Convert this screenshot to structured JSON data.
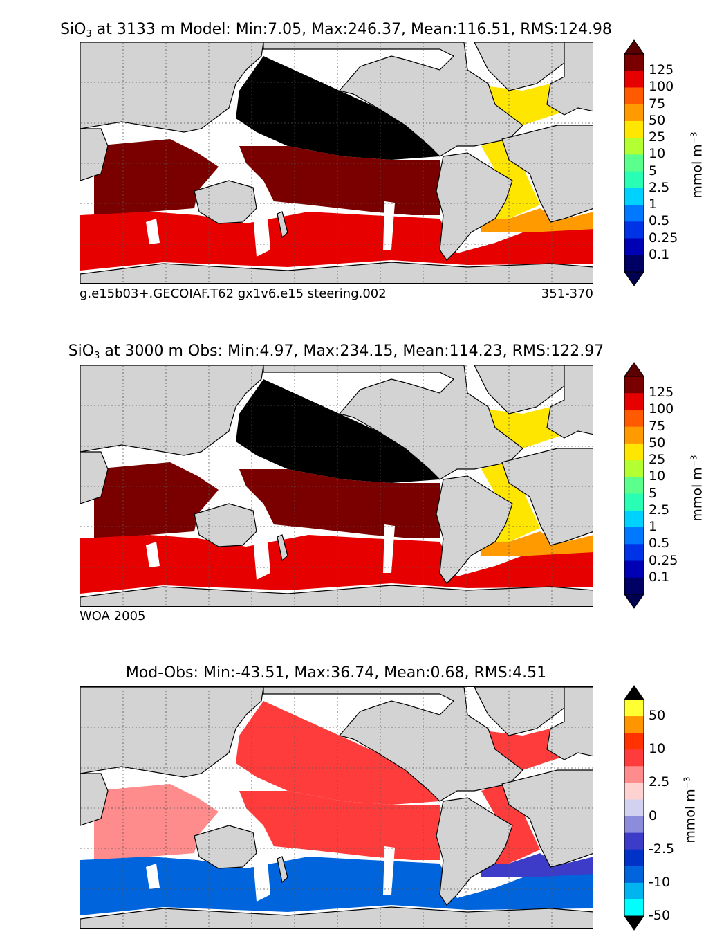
{
  "panels": [
    {
      "id": "model",
      "title_species": "SiO",
      "title_sub": "3",
      "title_rest": " at 3133 m Model: Min:7.05, Max:246.37, Mean:116.51, RMS:124.98",
      "footer_left": "g.e15b03+.GECOIAF.T62 gx1v6.e15 steering.002",
      "footer_right": "351-370",
      "colorbar": {
        "labels": [
          "125",
          "100",
          "75",
          "50",
          "25",
          "10",
          "5",
          "2.5",
          "1",
          "0.5",
          "0.25",
          "0.1"
        ],
        "colors": [
          "#7a0000",
          "#e60000",
          "#ff5a00",
          "#ff9a00",
          "#ffe600",
          "#b4ff32",
          "#5aff8c",
          "#28ffb4",
          "#00d2ff",
          "#0078ff",
          "#0032e6",
          "#0000b4",
          "#000064"
        ],
        "over_color": "#5a0000",
        "under_color": "#000050",
        "unit_base": "mmol m",
        "unit_exp": "−3"
      },
      "regions": {
        "pacific_north": "#000000",
        "pacific_south": "#7a0000",
        "indian": "#7a0000",
        "southern": "#e60000",
        "atlantic": "#ffe600",
        "atlantic_south": "#ff9a00",
        "arctic": "#b4ff32"
      }
    },
    {
      "id": "obs",
      "title_species": "SiO",
      "title_sub": "3",
      "title_rest": " at 3000 m Obs: Min:4.97, Max:234.15, Mean:114.23, RMS:122.97",
      "footer_left": "WOA 2005",
      "footer_right": "",
      "colorbar": {
        "labels": [
          "125",
          "100",
          "75",
          "50",
          "25",
          "10",
          "5",
          "2.5",
          "1",
          "0.5",
          "0.25",
          "0.1"
        ],
        "colors": [
          "#7a0000",
          "#e60000",
          "#ff5a00",
          "#ff9a00",
          "#ffe600",
          "#b4ff32",
          "#5aff8c",
          "#28ffb4",
          "#00d2ff",
          "#0078ff",
          "#0032e6",
          "#0000b4",
          "#000064"
        ],
        "over_color": "#5a0000",
        "under_color": "#000050",
        "unit_base": "mmol m",
        "unit_exp": "−3"
      },
      "regions": {
        "pacific_north": "#000000",
        "pacific_south": "#7a0000",
        "indian": "#7a0000",
        "southern": "#e60000",
        "atlantic": "#ffe600",
        "atlantic_south": "#ff9a00",
        "arctic": "#b4ff32"
      }
    },
    {
      "id": "diff",
      "title_species": "",
      "title_sub": "",
      "title_rest": "Mod-Obs: Min:-43.51, Max:36.74, Mean:0.68, RMS:4.51",
      "footer_left": "",
      "footer_right": "",
      "colorbar": {
        "labels": [
          "50",
          "10",
          "2.5",
          "0",
          "-2.5",
          "-10",
          "-50"
        ],
        "colors": [
          "#ffff32",
          "#ff9600",
          "#ff3200",
          "#ff3c3c",
          "#ff8c8c",
          "#ffd2d2",
          "#d2d2f0",
          "#8c8cdc",
          "#3c3cc8",
          "#0032c8",
          "#0064dc",
          "#00b4f0",
          "#00ffff"
        ],
        "over_color": "#000000",
        "under_color": "#000000",
        "unit_base": "mmol m",
        "unit_exp": "−3"
      },
      "regions": {
        "pacific_north": "#ff3c3c",
        "pacific_south": "#ff3c3c",
        "indian": "#ff8c8c",
        "southern": "#0064dc",
        "atlantic": "#ff3c3c",
        "atlantic_south": "#3c3cc8",
        "arctic": "#ffffff"
      }
    }
  ],
  "colors": {
    "land": "#d3d3d3",
    "missing": "#ffffff",
    "coast": "#000000",
    "grid": "#555555"
  }
}
